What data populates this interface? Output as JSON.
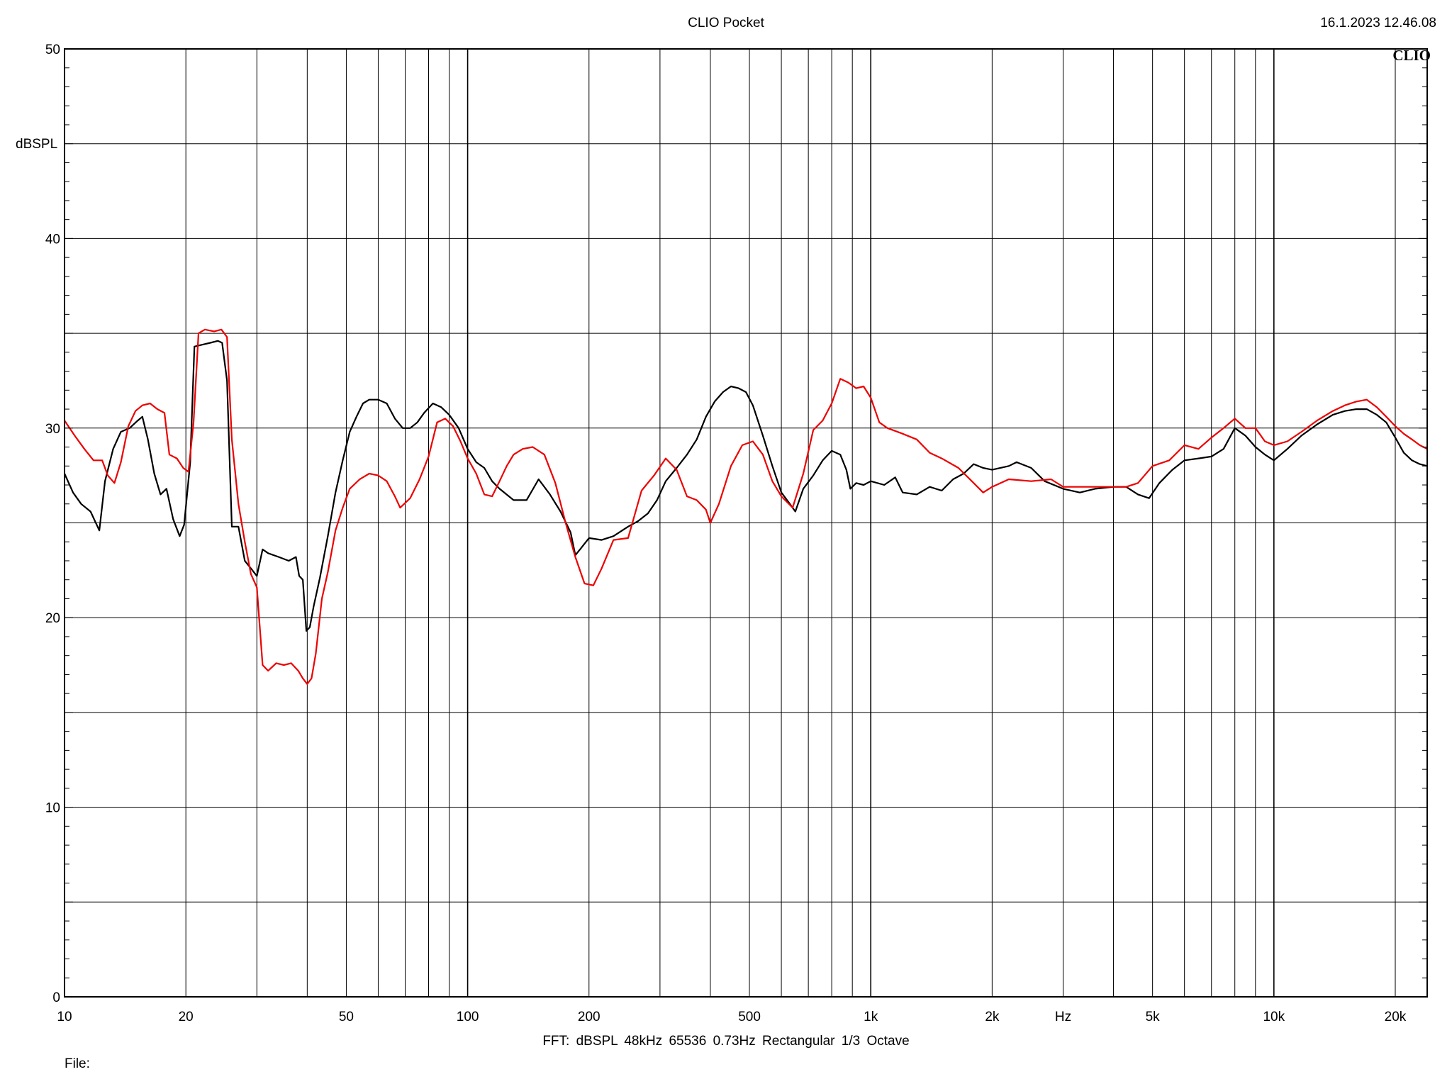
{
  "header": {
    "title": "CLIO Pocket",
    "timestamp": "16.1.2023 12.46.08",
    "logo": "CLIO"
  },
  "footer": {
    "info": "FFT:  dBSPL  48kHz   65536  0.73Hz  Rectangular  1/3 Octave",
    "file_label": "File:"
  },
  "chart_data": {
    "type": "line",
    "ylabel": "dBSPL",
    "xunit_label": "Hz",
    "xscale": "log",
    "xlim": [
      10,
      24000
    ],
    "ylim": [
      0,
      50
    ],
    "grid": true,
    "x_ticks": [
      {
        "value": 10,
        "label": "10"
      },
      {
        "value": 20,
        "label": "20"
      },
      {
        "value": 50,
        "label": "50"
      },
      {
        "value": 100,
        "label": "100"
      },
      {
        "value": 200,
        "label": "200"
      },
      {
        "value": 500,
        "label": "500"
      },
      {
        "value": 1000,
        "label": "1k"
      },
      {
        "value": 2000,
        "label": "2k"
      },
      {
        "value": 5000,
        "label": "5k"
      },
      {
        "value": 10000,
        "label": "10k"
      },
      {
        "value": 20000,
        "label": "20k"
      }
    ],
    "y_ticks": [
      {
        "value": 0,
        "label": "0"
      },
      {
        "value": 10,
        "label": "10"
      },
      {
        "value": 20,
        "label": "20"
      },
      {
        "value": 30,
        "label": "30"
      },
      {
        "value": 40,
        "label": "40"
      },
      {
        "value": 50,
        "label": "50"
      }
    ],
    "series": [
      {
        "color": "#000000",
        "points": [
          [
            10,
            27.6
          ],
          [
            10.5,
            26.6
          ],
          [
            11,
            26.0
          ],
          [
            11.6,
            25.6
          ],
          [
            12.2,
            24.6
          ],
          [
            12.6,
            27.2
          ],
          [
            13.2,
            28.9
          ],
          [
            13.8,
            29.8
          ],
          [
            14.5,
            30.0
          ],
          [
            15.2,
            30.4
          ],
          [
            15.6,
            30.6
          ],
          [
            16.1,
            29.4
          ],
          [
            16.7,
            27.6
          ],
          [
            17.3,
            26.5
          ],
          [
            17.9,
            26.8
          ],
          [
            18.6,
            25.2
          ],
          [
            19.3,
            24.3
          ],
          [
            19.8,
            24.9
          ],
          [
            20.5,
            28.2
          ],
          [
            21.0,
            34.3
          ],
          [
            22.0,
            34.4
          ],
          [
            23.0,
            34.5
          ],
          [
            24.0,
            34.6
          ],
          [
            24.6,
            34.5
          ],
          [
            25.3,
            32.5
          ],
          [
            26.0,
            24.8
          ],
          [
            27.0,
            24.8
          ],
          [
            28.0,
            23.0
          ],
          [
            29.0,
            22.6
          ],
          [
            30.0,
            22.2
          ],
          [
            31.0,
            23.6
          ],
          [
            32.0,
            23.4
          ],
          [
            34.0,
            23.2
          ],
          [
            36.0,
            23.0
          ],
          [
            37.5,
            23.2
          ],
          [
            38.2,
            22.2
          ],
          [
            39.0,
            22.0
          ],
          [
            39.8,
            19.3
          ],
          [
            40.6,
            19.5
          ],
          [
            41.5,
            20.6
          ],
          [
            43.0,
            22.1
          ],
          [
            45.0,
            24.3
          ],
          [
            47.0,
            26.6
          ],
          [
            49.0,
            28.3
          ],
          [
            51.0,
            29.8
          ],
          [
            53.0,
            30.6
          ],
          [
            55.0,
            31.3
          ],
          [
            57.0,
            31.5
          ],
          [
            60.0,
            31.5
          ],
          [
            63.0,
            31.3
          ],
          [
            66.0,
            30.5
          ],
          [
            69.0,
            30.0
          ],
          [
            72.0,
            30.0
          ],
          [
            75.0,
            30.3
          ],
          [
            78.0,
            30.8
          ],
          [
            82.0,
            31.3
          ],
          [
            86.0,
            31.1
          ],
          [
            90.0,
            30.7
          ],
          [
            95.0,
            30.0
          ],
          [
            100.0,
            28.9
          ],
          [
            105.0,
            28.2
          ],
          [
            110.0,
            27.9
          ],
          [
            115.0,
            27.2
          ],
          [
            120.0,
            26.8
          ],
          [
            130.0,
            26.2
          ],
          [
            140.0,
            26.2
          ],
          [
            150.0,
            27.3
          ],
          [
            160.0,
            26.5
          ],
          [
            170.0,
            25.6
          ],
          [
            180.0,
            24.5
          ],
          [
            185.0,
            23.3
          ],
          [
            190.0,
            23.6
          ],
          [
            200.0,
            24.2
          ],
          [
            215.0,
            24.1
          ],
          [
            230.0,
            24.3
          ],
          [
            250.0,
            24.8
          ],
          [
            265.0,
            25.1
          ],
          [
            280.0,
            25.5
          ],
          [
            295.0,
            26.2
          ],
          [
            310.0,
            27.2
          ],
          [
            330.0,
            27.9
          ],
          [
            350.0,
            28.6
          ],
          [
            370.0,
            29.4
          ],
          [
            390.0,
            30.6
          ],
          [
            410.0,
            31.4
          ],
          [
            430.0,
            31.9
          ],
          [
            450.0,
            32.2
          ],
          [
            470.0,
            32.1
          ],
          [
            490.0,
            31.9
          ],
          [
            510.0,
            31.2
          ],
          [
            540.0,
            29.6
          ],
          [
            570.0,
            28.0
          ],
          [
            600.0,
            26.6
          ],
          [
            630.0,
            26.0
          ],
          [
            650.0,
            25.6
          ],
          [
            680.0,
            26.8
          ],
          [
            720.0,
            27.5
          ],
          [
            760.0,
            28.3
          ],
          [
            800.0,
            28.8
          ],
          [
            840.0,
            28.6
          ],
          [
            870.0,
            27.8
          ],
          [
            890.0,
            26.8
          ],
          [
            920.0,
            27.1
          ],
          [
            960.0,
            27.0
          ],
          [
            1000,
            27.2
          ],
          [
            1080,
            27.0
          ],
          [
            1150,
            27.4
          ],
          [
            1200,
            26.6
          ],
          [
            1300,
            26.5
          ],
          [
            1400,
            26.9
          ],
          [
            1500,
            26.7
          ],
          [
            1600,
            27.3
          ],
          [
            1700,
            27.6
          ],
          [
            1800,
            28.1
          ],
          [
            1900,
            27.9
          ],
          [
            2000,
            27.8
          ],
          [
            2200,
            28.0
          ],
          [
            2300,
            28.2
          ],
          [
            2500,
            27.9
          ],
          [
            2700,
            27.2
          ],
          [
            3000,
            26.8
          ],
          [
            3300,
            26.6
          ],
          [
            3600,
            26.8
          ],
          [
            4000,
            26.9
          ],
          [
            4300,
            26.9
          ],
          [
            4600,
            26.5
          ],
          [
            4900,
            26.3
          ],
          [
            5200,
            27.1
          ],
          [
            5600,
            27.8
          ],
          [
            6000,
            28.3
          ],
          [
            6500,
            28.4
          ],
          [
            7000,
            28.5
          ],
          [
            7500,
            28.9
          ],
          [
            8000,
            30.0
          ],
          [
            8500,
            29.6
          ],
          [
            9000,
            29.0
          ],
          [
            9500,
            28.6
          ],
          [
            10000,
            28.3
          ],
          [
            10800,
            28.9
          ],
          [
            11700,
            29.6
          ],
          [
            12800,
            30.2
          ],
          [
            14000,
            30.7
          ],
          [
            15000,
            30.9
          ],
          [
            16000,
            31.0
          ],
          [
            17000,
            31.0
          ],
          [
            18000,
            30.7
          ],
          [
            19000,
            30.3
          ],
          [
            20000,
            29.5
          ],
          [
            21000,
            28.7
          ],
          [
            22000,
            28.3
          ],
          [
            23000,
            28.1
          ],
          [
            24000,
            28.0
          ]
        ]
      },
      {
        "color": "#ee0000",
        "points": [
          [
            10,
            30.4
          ],
          [
            10.6,
            29.6
          ],
          [
            11.2,
            28.9
          ],
          [
            11.8,
            28.3
          ],
          [
            12.4,
            28.3
          ],
          [
            12.8,
            27.5
          ],
          [
            13.3,
            27.1
          ],
          [
            13.8,
            28.2
          ],
          [
            14.4,
            30.1
          ],
          [
            15.0,
            30.9
          ],
          [
            15.6,
            31.2
          ],
          [
            16.3,
            31.3
          ],
          [
            17.0,
            31.0
          ],
          [
            17.7,
            30.8
          ],
          [
            18.2,
            28.6
          ],
          [
            19.0,
            28.4
          ],
          [
            19.7,
            27.9
          ],
          [
            20.3,
            27.7
          ],
          [
            20.9,
            30.3
          ],
          [
            21.5,
            35.0
          ],
          [
            22.3,
            35.2
          ],
          [
            23.5,
            35.1
          ],
          [
            24.5,
            35.2
          ],
          [
            25.3,
            34.8
          ],
          [
            26.0,
            29.4
          ],
          [
            27.0,
            26.0
          ],
          [
            28.0,
            24.0
          ],
          [
            29.0,
            22.3
          ],
          [
            30.0,
            21.6
          ],
          [
            31.0,
            17.5
          ],
          [
            32.0,
            17.2
          ],
          [
            33.5,
            17.6
          ],
          [
            35.0,
            17.5
          ],
          [
            36.5,
            17.6
          ],
          [
            38.0,
            17.2
          ],
          [
            39.0,
            16.8
          ],
          [
            40.0,
            16.5
          ],
          [
            41.0,
            16.8
          ],
          [
            42.0,
            18.1
          ],
          [
            43.5,
            21.0
          ],
          [
            45.0,
            22.4
          ],
          [
            47.0,
            24.6
          ],
          [
            49.0,
            25.8
          ],
          [
            51.0,
            26.8
          ],
          [
            54.0,
            27.3
          ],
          [
            57.0,
            27.6
          ],
          [
            60.0,
            27.5
          ],
          [
            63.0,
            27.2
          ],
          [
            66.0,
            26.4
          ],
          [
            68.0,
            25.8
          ],
          [
            72.0,
            26.3
          ],
          [
            76.0,
            27.3
          ],
          [
            80.0,
            28.5
          ],
          [
            84.0,
            30.3
          ],
          [
            88.0,
            30.5
          ],
          [
            92.0,
            30.1
          ],
          [
            96.0,
            29.3
          ],
          [
            100,
            28.4
          ],
          [
            105,
            27.6
          ],
          [
            110,
            26.5
          ],
          [
            115,
            26.4
          ],
          [
            120,
            27.2
          ],
          [
            125,
            28.0
          ],
          [
            130,
            28.6
          ],
          [
            137,
            28.9
          ],
          [
            145,
            29.0
          ],
          [
            155,
            28.6
          ],
          [
            165,
            27.1
          ],
          [
            175,
            25.0
          ],
          [
            185,
            23.2
          ],
          [
            195,
            21.8
          ],
          [
            205,
            21.7
          ],
          [
            215,
            22.6
          ],
          [
            230,
            24.1
          ],
          [
            250,
            24.2
          ],
          [
            270,
            26.7
          ],
          [
            290,
            27.5
          ],
          [
            310,
            28.4
          ],
          [
            330,
            27.8
          ],
          [
            350,
            26.4
          ],
          [
            370,
            26.2
          ],
          [
            390,
            25.7
          ],
          [
            400,
            25.0
          ],
          [
            420,
            26.0
          ],
          [
            450,
            28.0
          ],
          [
            480,
            29.1
          ],
          [
            510,
            29.3
          ],
          [
            540,
            28.6
          ],
          [
            570,
            27.2
          ],
          [
            600,
            26.4
          ],
          [
            640,
            25.8
          ],
          [
            680,
            27.6
          ],
          [
            720,
            29.9
          ],
          [
            760,
            30.4
          ],
          [
            800,
            31.3
          ],
          [
            840,
            32.6
          ],
          [
            880,
            32.4
          ],
          [
            920,
            32.1
          ],
          [
            960,
            32.2
          ],
          [
            1000,
            31.6
          ],
          [
            1050,
            30.3
          ],
          [
            1100,
            30.0
          ],
          [
            1200,
            29.7
          ],
          [
            1300,
            29.4
          ],
          [
            1400,
            28.7
          ],
          [
            1500,
            28.4
          ],
          [
            1650,
            27.9
          ],
          [
            1800,
            27.1
          ],
          [
            1900,
            26.6
          ],
          [
            2000,
            26.9
          ],
          [
            2200,
            27.3
          ],
          [
            2500,
            27.2
          ],
          [
            2800,
            27.3
          ],
          [
            3000,
            26.9
          ],
          [
            3300,
            26.9
          ],
          [
            3600,
            26.9
          ],
          [
            4000,
            26.9
          ],
          [
            4300,
            26.9
          ],
          [
            4600,
            27.1
          ],
          [
            5000,
            28.0
          ],
          [
            5500,
            28.3
          ],
          [
            6000,
            29.1
          ],
          [
            6500,
            28.9
          ],
          [
            7000,
            29.5
          ],
          [
            7500,
            30.0
          ],
          [
            8000,
            30.5
          ],
          [
            8500,
            30.0
          ],
          [
            9000,
            30.0
          ],
          [
            9500,
            29.3
          ],
          [
            10000,
            29.1
          ],
          [
            10800,
            29.3
          ],
          [
            11700,
            29.8
          ],
          [
            12800,
            30.4
          ],
          [
            14000,
            30.9
          ],
          [
            15000,
            31.2
          ],
          [
            16000,
            31.4
          ],
          [
            17000,
            31.5
          ],
          [
            18000,
            31.1
          ],
          [
            19000,
            30.6
          ],
          [
            20000,
            30.1
          ],
          [
            21000,
            29.7
          ],
          [
            22000,
            29.4
          ],
          [
            23000,
            29.1
          ],
          [
            24000,
            28.9
          ]
        ]
      }
    ]
  }
}
